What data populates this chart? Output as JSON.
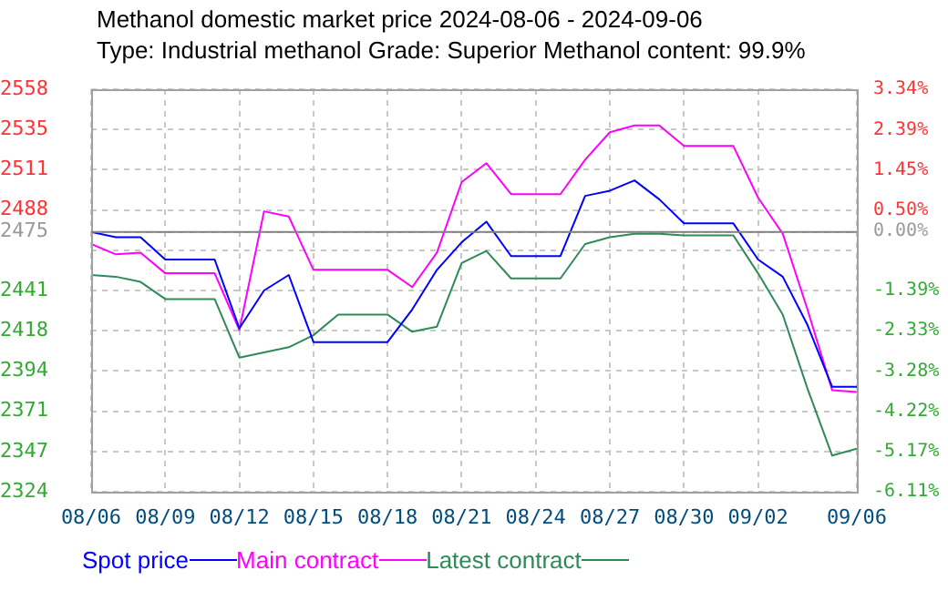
{
  "chart_data": {
    "type": "line",
    "title": "Methanol domestic market price 2024-08-06 - 2024-09-06",
    "subtitle": "Type: Industrial methanol Grade: Superior Methanol content: 99.9%",
    "x": [
      "2024-08-06",
      "2024-08-07",
      "2024-08-08",
      "2024-08-09",
      "2024-08-10",
      "2024-08-11",
      "2024-08-12",
      "2024-08-13",
      "2024-08-14",
      "2024-08-15",
      "2024-08-16",
      "2024-08-17",
      "2024-08-18",
      "2024-08-19",
      "2024-08-20",
      "2024-08-21",
      "2024-08-22",
      "2024-08-23",
      "2024-08-24",
      "2024-08-25",
      "2024-08-26",
      "2024-08-27",
      "2024-08-28",
      "2024-08-29",
      "2024-08-30",
      "2024-08-31",
      "2024-09-01",
      "2024-09-02",
      "2024-09-03",
      "2024-09-04",
      "2024-09-05",
      "2024-09-06"
    ],
    "series": [
      {
        "name": "Spot price",
        "color": "#0000ff",
        "values": [
          2475,
          2472,
          2472,
          2459,
          2459,
          2459,
          2419,
          2441,
          2450,
          2411,
          2411,
          2411,
          2411,
          2430,
          2453,
          2469,
          2481,
          2461,
          2461,
          2461,
          2496,
          2499,
          2505,
          2494,
          2480,
          2480,
          2480,
          2459,
          2449,
          2421,
          2385,
          2385
        ]
      },
      {
        "name": "Main contract",
        "color": "#ff00ff",
        "values": [
          2468,
          2462,
          2463,
          2451,
          2451,
          2451,
          2418,
          2487,
          2484,
          2453,
          2453,
          2453,
          2453,
          2443,
          2463,
          2504,
          2515,
          2497,
          2497,
          2497,
          2517,
          2533,
          2537,
          2537,
          2525,
          2525,
          2525,
          2495,
          2474,
          2430,
          2383,
          2382
        ]
      },
      {
        "name": "Latest contract",
        "color": "#2e8b57",
        "values": [
          2450,
          2449,
          2446,
          2436,
          2436,
          2436,
          2402,
          2405,
          2408,
          2415,
          2427,
          2427,
          2427,
          2417,
          2420,
          2457,
          2464,
          2448,
          2448,
          2448,
          2468,
          2472,
          2474,
          2474,
          2473,
          2473,
          2473,
          2451,
          2427,
          2384,
          2345,
          2349
        ]
      }
    ],
    "xlim": [
      "2024-08-06",
      "2024-09-06"
    ],
    "xticks": [
      {
        "value": "2024-08-06",
        "label": "08/06"
      },
      {
        "value": "2024-08-09",
        "label": "08/09"
      },
      {
        "value": "2024-08-12",
        "label": "08/12"
      },
      {
        "value": "2024-08-15",
        "label": "08/15"
      },
      {
        "value": "2024-08-18",
        "label": "08/18"
      },
      {
        "value": "2024-08-21",
        "label": "08/21"
      },
      {
        "value": "2024-08-24",
        "label": "08/24"
      },
      {
        "value": "2024-08-27",
        "label": "08/27"
      },
      {
        "value": "2024-08-30",
        "label": "08/30"
      },
      {
        "value": "2024-09-02",
        "label": "09/02"
      },
      {
        "value": "2024-09-06",
        "label": "09/06"
      }
    ],
    "ylim": [
      2324,
      2558
    ],
    "yticks": [
      2324,
      {
        "value": 2347.4,
        "label": "2347"
      },
      {
        "value": 2370.8,
        "label": "2371"
      },
      {
        "value": 2394.2,
        "label": "2394"
      },
      {
        "value": 2417.6,
        "label": "2418"
      },
      2441,
      {
        "value": 2464.4,
        "label": null
      },
      2475,
      {
        "value": 2487.8,
        "label": "2488"
      },
      {
        "value": 2511.2,
        "label": "2511"
      },
      {
        "value": 2534.6,
        "label": "2535"
      },
      2558
    ],
    "y2lim": [
      -6.11,
      3.34
    ],
    "y2ticks": [
      {
        "value": -6.11,
        "label": "-6.11%"
      },
      {
        "value": -5.17,
        "label": "-5.17%"
      },
      {
        "value": -4.22,
        "label": "-4.22%"
      },
      {
        "value": -3.28,
        "label": "-3.28%"
      },
      {
        "value": -2.33,
        "label": "-2.33%"
      },
      {
        "value": -1.39,
        "label": "-1.39%"
      },
      {
        "value": 0,
        "label": "0.00%"
      },
      {
        "value": 0.5,
        "label": "0.50%"
      },
      {
        "value": 1.45,
        "label": "1.45%"
      },
      {
        "value": 2.39,
        "label": "2.39%"
      },
      {
        "value": 3.34,
        "label": "3.34%"
      }
    ],
    "ref_lines": [
      {
        "axis": "y",
        "value": 2475,
        "color": "#808080"
      }
    ],
    "grid": true,
    "legend": "bottom",
    "marker": "none",
    "line_style": "solid"
  }
}
